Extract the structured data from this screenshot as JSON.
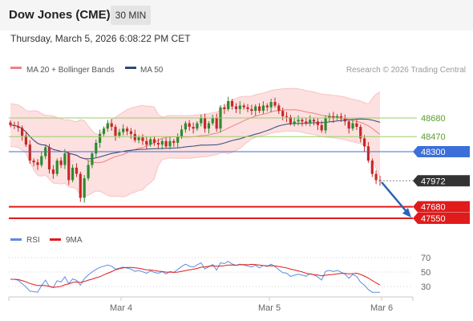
{
  "header": {
    "instrument": "Dow Jones (CME)",
    "timeframe": "30 MIN",
    "datetime": "Thursday, March 5, 2026 6:08:22 PM CET"
  },
  "legend": {
    "ma20": "MA 20 + Bollinger Bands",
    "ma50": "MA 50",
    "copyright": "Research © 2026 Trading Central",
    "rsi": "RSI",
    "ma9": "9MA"
  },
  "colors": {
    "up": "#2e8b2e",
    "down": "#c62828",
    "ma20": "#f08080",
    "ma50": "#2c4a7c",
    "bb_fill": "#fde0e0",
    "resistance": "#9acd6a",
    "pivot": "#3d6fd9",
    "support": "#e01b1b",
    "last": "#333333",
    "arrow": "#2a63b8",
    "rsi": "#5b8de0"
  },
  "chart_data": [
    {
      "type": "candlestick",
      "x_ticks": [
        "Mar 4",
        "Mar 5",
        "Mar 6"
      ],
      "levels": [
        {
          "name": "resistance",
          "value": 48680,
          "label": "48680"
        },
        {
          "name": "resistance",
          "value": 48470,
          "label": "48470"
        },
        {
          "name": "pivot",
          "value": 48300,
          "label": "48300"
        },
        {
          "name": "last",
          "value": 47972,
          "label": "47972"
        },
        {
          "name": "support",
          "value": 47680,
          "label": "47680"
        },
        {
          "name": "support",
          "value": 47550,
          "label": "47550"
        }
      ],
      "last_price": 47972,
      "forecast": "down",
      "closes": [
        48600,
        48590,
        48570,
        48480,
        48380,
        48200,
        48180,
        48150,
        48250,
        48350,
        48100,
        48050,
        48200,
        48150,
        48280,
        47980,
        48120,
        48050,
        47780,
        48000,
        48150,
        48280,
        48400,
        48500,
        48560,
        48620,
        48580,
        48480,
        48520,
        48560,
        48530,
        48500,
        48430,
        48460,
        48420,
        48380,
        48440,
        48400,
        48380,
        48420,
        48360,
        48420,
        48400,
        48470,
        48550,
        48620,
        48580,
        48560,
        48620,
        48680,
        48560,
        48620,
        48680,
        48560,
        48800,
        48780,
        48870,
        48810,
        48780,
        48820,
        48800,
        48780,
        48760,
        48810,
        48760,
        48820,
        48800,
        48860,
        48820,
        48760,
        48700,
        48690,
        48620,
        48640,
        48660,
        48640,
        48620,
        48660,
        48640,
        48600,
        48540,
        48680,
        48700,
        48680,
        48700,
        48670,
        48640,
        48560,
        48620,
        48580,
        48450,
        48360,
        48200,
        48050,
        47980,
        47972
      ]
    },
    {
      "type": "line",
      "indicator": "RSI",
      "series": [
        {
          "name": "RSI"
        },
        {
          "name": "9MA"
        }
      ],
      "y_ticks": [
        70,
        50,
        30
      ],
      "ylim": [
        20,
        80
      ]
    }
  ]
}
